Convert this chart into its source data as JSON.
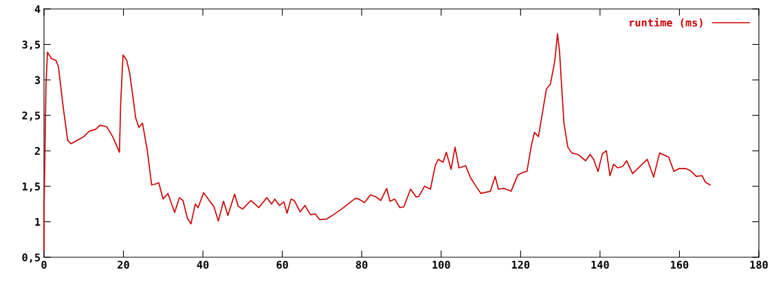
{
  "chart_data": {
    "type": "line",
    "xlim": [
      0,
      180
    ],
    "ylim": [
      0.5,
      4
    ],
    "xticks": [
      0,
      20,
      40,
      60,
      80,
      100,
      120,
      140,
      160,
      180
    ],
    "yticks": [
      {
        "value": 0.5,
        "label": "0,5"
      },
      1,
      {
        "value": 1.5,
        "label": "1,5"
      },
      2,
      {
        "value": 2.5,
        "label": "2,5"
      },
      3,
      {
        "value": 3.5,
        "label": "3,5"
      },
      4
    ],
    "grid": false,
    "legend": "top right",
    "marker": "none",
    "line_style": "solid",
    "series": [
      {
        "name": "runtime (ms)",
        "color": "#cc0000",
        "x": [
          0,
          0,
          0.5,
          0.87,
          1.9,
          3.07,
          3.65,
          4.8,
          5.97,
          6.8,
          10.0,
          11.5,
          12.9,
          14.1,
          15.8,
          17.3,
          19.0,
          19.3,
          19.9,
          20.8,
          21.6,
          23.1,
          23.9,
          24.8,
          26.0,
          27.1,
          28.0,
          28.9,
          30.0,
          31.2,
          32.9,
          34.1,
          35.0,
          36.1,
          37.0,
          38.1,
          38.8,
          40.2,
          41.6,
          42.8,
          43.9,
          45.2,
          46.3,
          48.0,
          48.9,
          50.0,
          52.1,
          54.1,
          56.1,
          57.3,
          58.1,
          59.3,
          60.4,
          61.2,
          62.2,
          63.0,
          64.5,
          65.7,
          67.1,
          68.3,
          69.4,
          71.2,
          72.9,
          75.2,
          77.0,
          78.4,
          79.3,
          80.7,
          82.2,
          83.6,
          84.8,
          86.3,
          87.1,
          88.3,
          89.6,
          90.6,
          92.3,
          93.7,
          94.4,
          95.8,
          97.3,
          98.5,
          99.3,
          100.5,
          101.3,
          102.5,
          103.5,
          104.5,
          106.2,
          107.4,
          108.9,
          110.0,
          112.4,
          113.6,
          114.4,
          115.9,
          117.6,
          119.3,
          120.8,
          121.6,
          122.8,
          123.5,
          124.5,
          126.5,
          127.5,
          128.6,
          129.3,
          129.8,
          130.9,
          131.9,
          132.9,
          134.4,
          136.4,
          137.5,
          138.4,
          139.5,
          140.6,
          141.6,
          142.5,
          143.4,
          144.5,
          145.7,
          146.7,
          148.2,
          150.6,
          151.9,
          153.5,
          155.0,
          157.3,
          158.6,
          159.9,
          161.6,
          162.8,
          164.2,
          165.7,
          166.5,
          167.7
        ],
        "values": [
          0.6,
          1.12,
          2.92,
          3.39,
          3.3,
          3.27,
          3.18,
          2.63,
          2.15,
          2.1,
          2.2,
          2.28,
          2.3,
          2.36,
          2.34,
          2.2,
          1.98,
          2.66,
          3.35,
          3.28,
          3.09,
          2.46,
          2.33,
          2.39,
          2.01,
          1.52,
          1.53,
          1.55,
          1.32,
          1.4,
          1.13,
          1.34,
          1.3,
          1.05,
          0.97,
          1.25,
          1.2,
          1.41,
          1.3,
          1.21,
          1.01,
          1.29,
          1.09,
          1.39,
          1.22,
          1.18,
          1.3,
          1.2,
          1.34,
          1.25,
          1.32,
          1.23,
          1.28,
          1.12,
          1.32,
          1.3,
          1.14,
          1.23,
          1.1,
          1.11,
          1.03,
          1.04,
          1.1,
          1.19,
          1.27,
          1.33,
          1.32,
          1.27,
          1.38,
          1.35,
          1.3,
          1.47,
          1.29,
          1.32,
          1.2,
          1.21,
          1.46,
          1.35,
          1.36,
          1.5,
          1.46,
          1.79,
          1.88,
          1.84,
          1.98,
          1.74,
          2.05,
          1.76,
          1.79,
          1.62,
          1.49,
          1.4,
          1.43,
          1.64,
          1.46,
          1.47,
          1.43,
          1.66,
          1.7,
          1.71,
          2.1,
          2.26,
          2.2,
          2.87,
          2.94,
          3.26,
          3.65,
          3.41,
          2.4,
          2.05,
          1.97,
          1.95,
          1.86,
          1.95,
          1.88,
          1.71,
          1.96,
          2.0,
          1.65,
          1.81,
          1.76,
          1.78,
          1.86,
          1.68,
          1.81,
          1.88,
          1.63,
          1.97,
          1.91,
          1.71,
          1.75,
          1.75,
          1.72,
          1.64,
          1.65,
          1.56,
          1.52
        ]
      }
    ]
  }
}
